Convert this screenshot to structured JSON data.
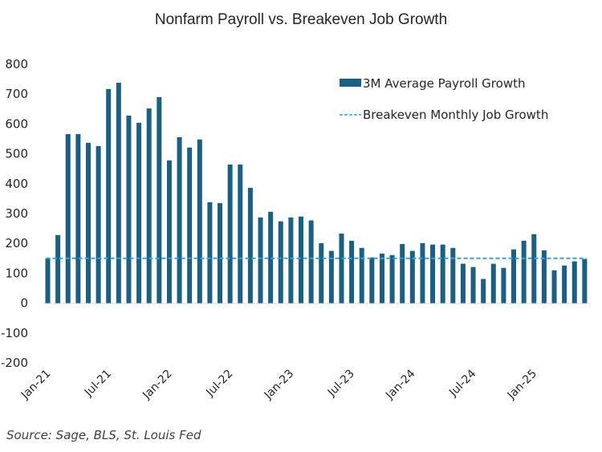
{
  "chart_data": {
    "type": "bar",
    "title": "Nonfarm Payroll vs. Breakeven Job Growth",
    "xlabel": "",
    "ylabel": "",
    "ylim": [
      -200,
      800
    ],
    "yticks": [
      "800",
      "700",
      "600",
      "500",
      "400",
      "300",
      "200",
      "100",
      "0",
      "-100",
      "-200"
    ],
    "ytick_values": [
      800,
      700,
      600,
      500,
      400,
      300,
      200,
      100,
      0,
      -100,
      -200
    ],
    "xtick_labels": [
      "Jan-21",
      "Jul-21",
      "Jan-22",
      "Jul-22",
      "Jan-23",
      "Jul-23",
      "Jan-24",
      "Jul-24",
      "Jan-25"
    ],
    "xtick_every": 6,
    "grid": false,
    "legend_position": "top-right",
    "categories": [
      "Jan-21",
      "Feb-21",
      "Mar-21",
      "Apr-21",
      "May-21",
      "Jun-21",
      "Jul-21",
      "Aug-21",
      "Sep-21",
      "Oct-21",
      "Nov-21",
      "Dec-21",
      "Jan-22",
      "Feb-22",
      "Mar-22",
      "Apr-22",
      "May-22",
      "Jun-22",
      "Jul-22",
      "Aug-22",
      "Sep-22",
      "Oct-22",
      "Nov-22",
      "Dec-22",
      "Jan-23",
      "Feb-23",
      "Mar-23",
      "Apr-23",
      "May-23",
      "Jun-23",
      "Jul-23",
      "Aug-23",
      "Sep-23",
      "Oct-23",
      "Nov-23",
      "Dec-23",
      "Jan-24",
      "Feb-24",
      "Mar-24",
      "Apr-24",
      "May-24",
      "Jun-24",
      "Jul-24",
      "Aug-24",
      "Sep-24",
      "Oct-24",
      "Nov-24",
      "Dec-24",
      "Jan-25",
      "Feb-25",
      "Mar-25",
      "Apr-25",
      "May-25",
      "Jun-25"
    ],
    "series": [
      {
        "name": "3M Average Payroll Growth",
        "type": "bar",
        "color": "#1B5F82",
        "values": [
          150,
          228,
          566,
          566,
          537,
          526,
          717,
          738,
          628,
          604,
          652,
          690,
          478,
          556,
          521,
          548,
          338,
          335,
          464,
          464,
          386,
          287,
          306,
          274,
          287,
          290,
          277,
          201,
          175,
          233,
          209,
          185,
          153,
          166,
          161,
          198,
          175,
          201,
          196,
          196,
          185,
          132,
          121,
          81,
          132,
          118,
          180,
          209,
          231,
          177,
          110,
          126,
          140,
          148
        ]
      },
      {
        "name": "Breakeven Monthly Job Growth",
        "type": "line",
        "style": "dashed",
        "color": "#3AA0D8",
        "value": 150
      }
    ],
    "source": "Source: Sage, BLS, St. Louis Fed"
  }
}
